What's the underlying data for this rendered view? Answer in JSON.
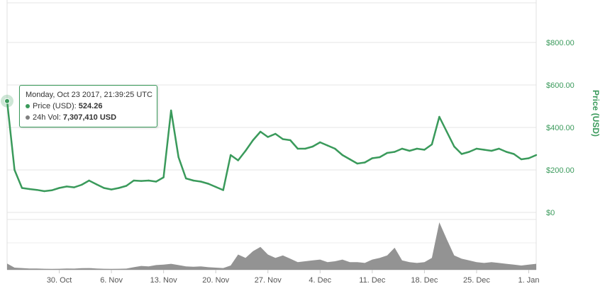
{
  "chart_data": {
    "type": "line",
    "title": "",
    "x_tick_labels": [
      "30. Oct",
      "6. Nov",
      "13. Nov",
      "20. Nov",
      "27. Nov",
      "4. Dec",
      "11. Dec",
      "18. Dec",
      "25. Dec",
      "1. Jan"
    ],
    "x_range": [
      "2017-10-23",
      "2018-01-02"
    ],
    "ylabel": "Price (USD)",
    "y_tick_labels": [
      "$0",
      "$200.00",
      "$400.00",
      "$600.00",
      "$800.00"
    ],
    "ylim": [
      0,
      800
    ],
    "grid": true,
    "series": [
      {
        "name": "Price (USD)",
        "color": "#3a9a5b",
        "x": [
          "2017-10-23",
          "2017-10-24",
          "2017-10-25",
          "2017-10-26",
          "2017-10-27",
          "2017-10-28",
          "2017-10-29",
          "2017-10-30",
          "2017-10-31",
          "2017-11-01",
          "2017-11-02",
          "2017-11-03",
          "2017-11-04",
          "2017-11-05",
          "2017-11-06",
          "2017-11-07",
          "2017-11-08",
          "2017-11-09",
          "2017-11-10",
          "2017-11-11",
          "2017-11-12",
          "2017-11-13",
          "2017-11-14",
          "2017-11-15",
          "2017-11-16",
          "2017-11-17",
          "2017-11-18",
          "2017-11-19",
          "2017-11-20",
          "2017-11-21",
          "2017-11-22",
          "2017-11-23",
          "2017-11-24",
          "2017-11-25",
          "2017-11-26",
          "2017-11-27",
          "2017-11-28",
          "2017-11-29",
          "2017-11-30",
          "2017-12-01",
          "2017-12-02",
          "2017-12-03",
          "2017-12-04",
          "2017-12-05",
          "2017-12-06",
          "2017-12-07",
          "2017-12-08",
          "2017-12-09",
          "2017-12-10",
          "2017-12-11",
          "2017-12-12",
          "2017-12-13",
          "2017-12-14",
          "2017-12-15",
          "2017-12-16",
          "2017-12-17",
          "2017-12-18",
          "2017-12-19",
          "2017-12-20",
          "2017-12-21",
          "2017-12-22",
          "2017-12-23",
          "2017-12-24",
          "2017-12-25",
          "2017-12-26",
          "2017-12-27",
          "2017-12-28",
          "2017-12-29",
          "2017-12-30",
          "2017-12-31",
          "2018-01-01",
          "2018-01-02"
        ],
        "values": [
          524.26,
          200,
          115,
          110,
          106,
          100,
          104,
          115,
          122,
          118,
          130,
          150,
          132,
          115,
          108,
          115,
          125,
          150,
          148,
          150,
          145,
          165,
          480,
          260,
          160,
          150,
          145,
          135,
          120,
          105,
          270,
          245,
          290,
          340,
          380,
          355,
          370,
          345,
          340,
          300,
          300,
          310,
          330,
          315,
          300,
          270,
          250,
          230,
          235,
          255,
          260,
          280,
          285,
          300,
          290,
          300,
          295,
          320,
          450,
          380,
          310,
          275,
          285,
          300,
          295,
          290,
          300,
          285,
          275,
          250,
          255,
          270
        ]
      }
    ],
    "volume": {
      "name": "24h Vol",
      "color": "#808080",
      "values": [
        7307410,
        2500000,
        2000000,
        1500000,
        1500000,
        1200000,
        1000000,
        1200000,
        1500000,
        1300000,
        1800000,
        2000000,
        1500000,
        1200000,
        1000000,
        1200000,
        1300000,
        3000000,
        4500000,
        4000000,
        5500000,
        6000000,
        7000000,
        5500000,
        4000000,
        3500000,
        4000000,
        3000000,
        2500000,
        2000000,
        5000000,
        18000000,
        14000000,
        22000000,
        27000000,
        18000000,
        14000000,
        17000000,
        13000000,
        9000000,
        10000000,
        11000000,
        12000000,
        9000000,
        10000000,
        12000000,
        9000000,
        9000000,
        8000000,
        12000000,
        14000000,
        17000000,
        26000000,
        11000000,
        9000000,
        8000000,
        9000000,
        14000000,
        56000000,
        36000000,
        17000000,
        13000000,
        11000000,
        9000000,
        8000000,
        9000000,
        8000000,
        7000000,
        6000000,
        5000000,
        6000000,
        7000000
      ]
    },
    "tooltip": {
      "date": "Monday, Oct 23 2017, 21:39:25 UTC",
      "price_label": "Price (USD):",
      "price_value": "524.26",
      "volume_label": "24h Vol:",
      "volume_value": "7,307,410 USD"
    }
  }
}
